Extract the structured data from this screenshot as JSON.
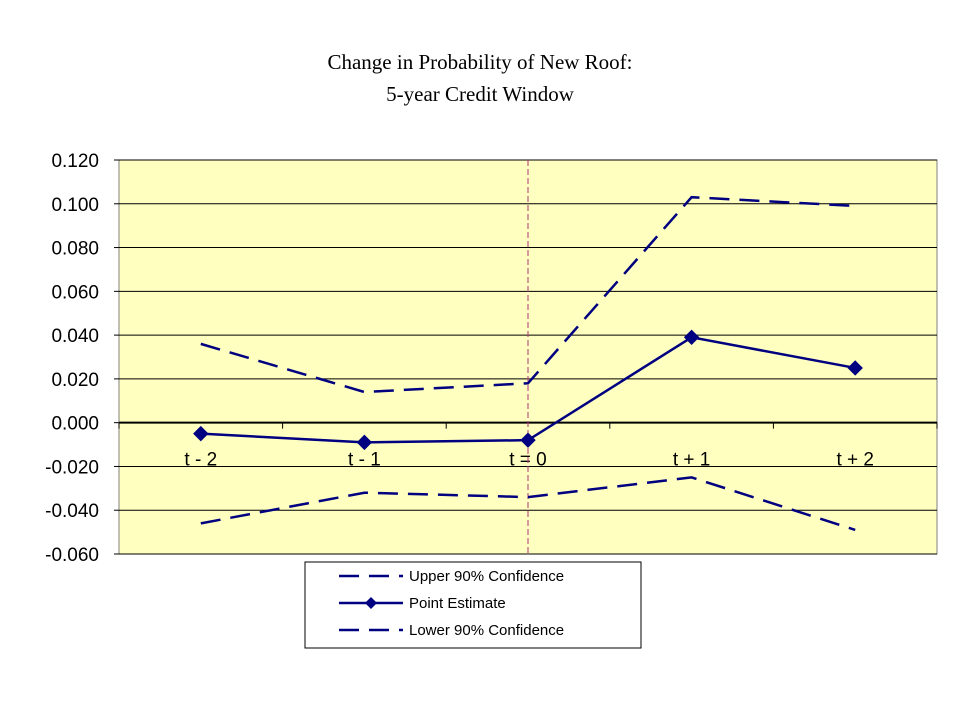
{
  "chart_data": {
    "type": "line",
    "title": "Change in Probability of New Roof:",
    "subtitle": "5-year Credit Window",
    "categories": [
      "t - 2",
      "t - 1",
      "t = 0",
      "t + 1",
      "t + 2"
    ],
    "yticks": [
      "0.120",
      "0.100",
      "0.080",
      "0.060",
      "0.040",
      "0.020",
      "0.000",
      "-0.020",
      "-0.040",
      "-0.060"
    ],
    "ylim": [
      -0.06,
      0.12
    ],
    "reference_line": "t = 0",
    "grid": true,
    "legend_position": "bottom",
    "series": [
      {
        "name": "Upper 90% Confidence",
        "values": [
          0.036,
          0.014,
          0.018,
          0.103,
          0.099
        ],
        "style": "dashed",
        "color": "#000080"
      },
      {
        "name": "Point Estimate",
        "values": [
          -0.005,
          -0.009,
          -0.008,
          0.039,
          0.025
        ],
        "style": "solid-diamond",
        "color": "#000080"
      },
      {
        "name": "Lower 90% Confidence",
        "values": [
          -0.046,
          -0.032,
          -0.034,
          -0.025,
          -0.049
        ],
        "style": "dashed",
        "color": "#000080"
      }
    ]
  },
  "colors": {
    "plot_background": "#FFFFC0",
    "series": "#000080",
    "reference_line": "#B0307A"
  }
}
